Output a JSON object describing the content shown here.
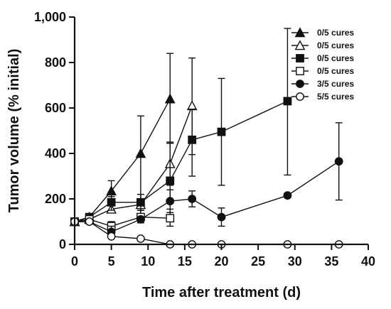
{
  "chart_data": {
    "type": "line",
    "xlabel": "Time after treatment (d)",
    "ylabel": "Tumor volume (% initial)",
    "xlim": [
      0,
      40
    ],
    "ylim": [
      0,
      1000
    ],
    "x_ticks": [
      0,
      5,
      10,
      15,
      20,
      25,
      30,
      35,
      40
    ],
    "y_ticks": [
      0,
      200,
      400,
      600,
      800,
      1000
    ],
    "x_tick_labels": [
      "0",
      "5",
      "10",
      "15",
      "20",
      "25",
      "30",
      "35",
      "40"
    ],
    "y_tick_labels": [
      "0",
      "200",
      "400",
      "600",
      "800",
      "1,000"
    ],
    "grid": false,
    "legend_position": "top-right",
    "series": [
      {
        "name": "0/5 cures",
        "marker": "triangle",
        "fill": "#111111",
        "x": [
          0,
          2,
          5,
          9,
          13
        ],
        "y": [
          100,
          120,
          235,
          400,
          640
        ],
        "error_low": [
          95,
          115,
          210,
          200,
          445
        ],
        "error_high": [
          105,
          125,
          280,
          565,
          840
        ]
      },
      {
        "name": "0/5 cures",
        "marker": "triangle",
        "fill": "#ffffff",
        "x": [
          0,
          2,
          5,
          9,
          13,
          16
        ],
        "y": [
          100,
          110,
          155,
          175,
          355,
          610
        ],
        "error_low": [
          95,
          105,
          140,
          125,
          260,
          395
        ],
        "error_high": [
          105,
          115,
          170,
          200,
          445,
          820
        ]
      },
      {
        "name": "0/5 cures",
        "marker": "square",
        "fill": "#111111",
        "x": [
          0,
          2,
          5,
          9,
          13,
          16,
          20,
          29
        ],
        "y": [
          100,
          120,
          185,
          185,
          280,
          460,
          495,
          630
        ],
        "error_low": [
          95,
          115,
          150,
          150,
          185,
          300,
          260,
          305
        ],
        "error_high": [
          105,
          125,
          230,
          220,
          450,
          595,
          730,
          950
        ]
      },
      {
        "name": "0/5 cures",
        "marker": "square",
        "fill": "#ffffff",
        "x": [
          0,
          2,
          5,
          9,
          13
        ],
        "y": [
          100,
          110,
          80,
          120,
          115
        ],
        "error_low": [
          95,
          105,
          55,
          95,
          80
        ],
        "error_high": [
          105,
          115,
          100,
          150,
          155
        ]
      },
      {
        "name": "3/5 cures",
        "marker": "circle",
        "fill": "#111111",
        "x": [
          0,
          2,
          5,
          9,
          13,
          16,
          20,
          29,
          36
        ],
        "y": [
          100,
          100,
          55,
          110,
          190,
          200,
          120,
          215,
          365
        ],
        "error_low": [
          95,
          95,
          35,
          95,
          140,
          165,
          80,
          205,
          195
        ],
        "error_high": [
          105,
          105,
          80,
          120,
          240,
          235,
          160,
          225,
          535
        ]
      },
      {
        "name": "5/5 cures",
        "marker": "circle",
        "fill": "#ffffff",
        "x": [
          0,
          2,
          5,
          9,
          13,
          16,
          20,
          29,
          36
        ],
        "y": [
          100,
          100,
          35,
          25,
          0,
          0,
          0,
          0,
          0
        ],
        "error_low": [
          95,
          95,
          30,
          20,
          0,
          0,
          0,
          0,
          0
        ],
        "error_high": [
          105,
          105,
          40,
          30,
          0,
          0,
          0,
          0,
          0
        ]
      }
    ]
  }
}
